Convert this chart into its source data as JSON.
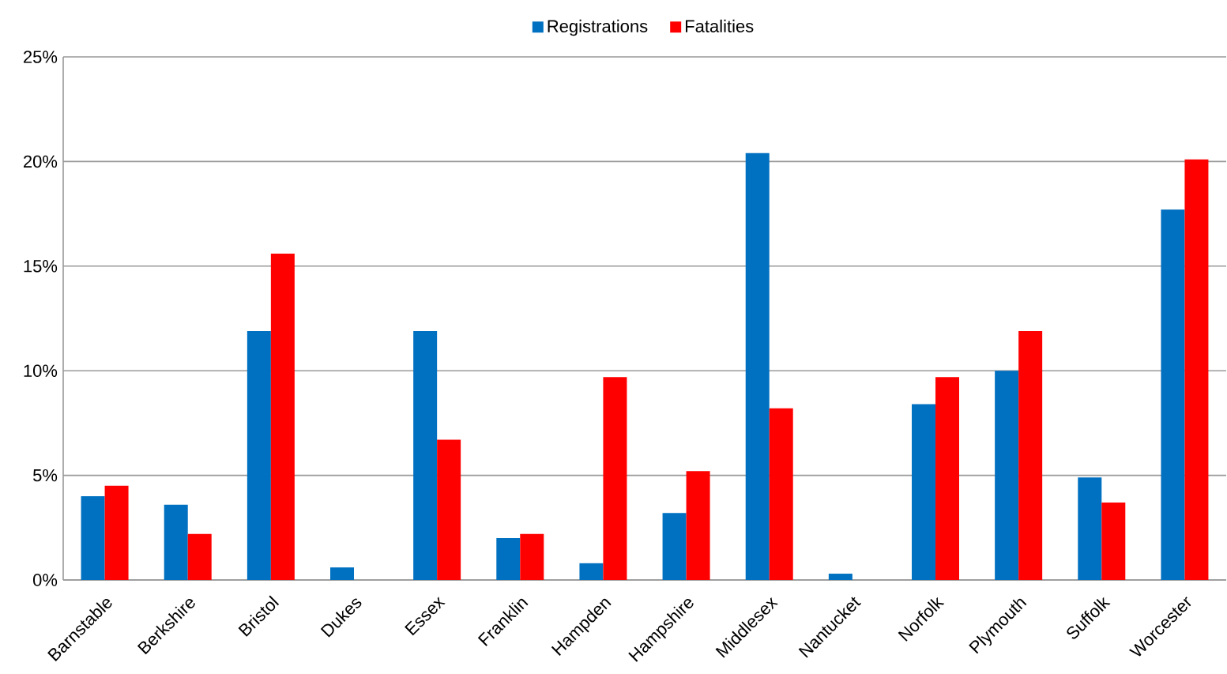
{
  "chart_data": {
    "type": "bar",
    "categories": [
      "Barnstable",
      "Berkshire",
      "Bristol",
      "Dukes",
      "Essex",
      "Franklin",
      "Hampden",
      "Hampshire",
      "Middlesex",
      "Nantucket",
      "Norfolk",
      "Plymouth",
      "Suffolk",
      "Worcester"
    ],
    "series": [
      {
        "name": "Registrations",
        "color": "#0070c0",
        "values": [
          4.0,
          3.6,
          11.9,
          0.6,
          11.9,
          2.0,
          0.8,
          3.2,
          20.4,
          0.3,
          8.4,
          10.0,
          4.9,
          17.7
        ]
      },
      {
        "name": "Fatalities",
        "color": "#ff0000",
        "values": [
          4.5,
          2.2,
          15.6,
          0,
          6.7,
          2.2,
          9.7,
          5.2,
          8.2,
          0,
          9.7,
          11.9,
          3.7,
          20.1
        ]
      }
    ],
    "ylim": [
      0,
      25
    ],
    "yticks": [
      {
        "value": 0,
        "label": "0%"
      },
      {
        "value": 5,
        "label": "5%"
      },
      {
        "value": 10,
        "label": "10%"
      },
      {
        "value": 15,
        "label": "15%"
      },
      {
        "value": 20,
        "label": "20%"
      },
      {
        "value": 25,
        "label": "25%"
      }
    ],
    "grid": "y",
    "legend": "top"
  }
}
